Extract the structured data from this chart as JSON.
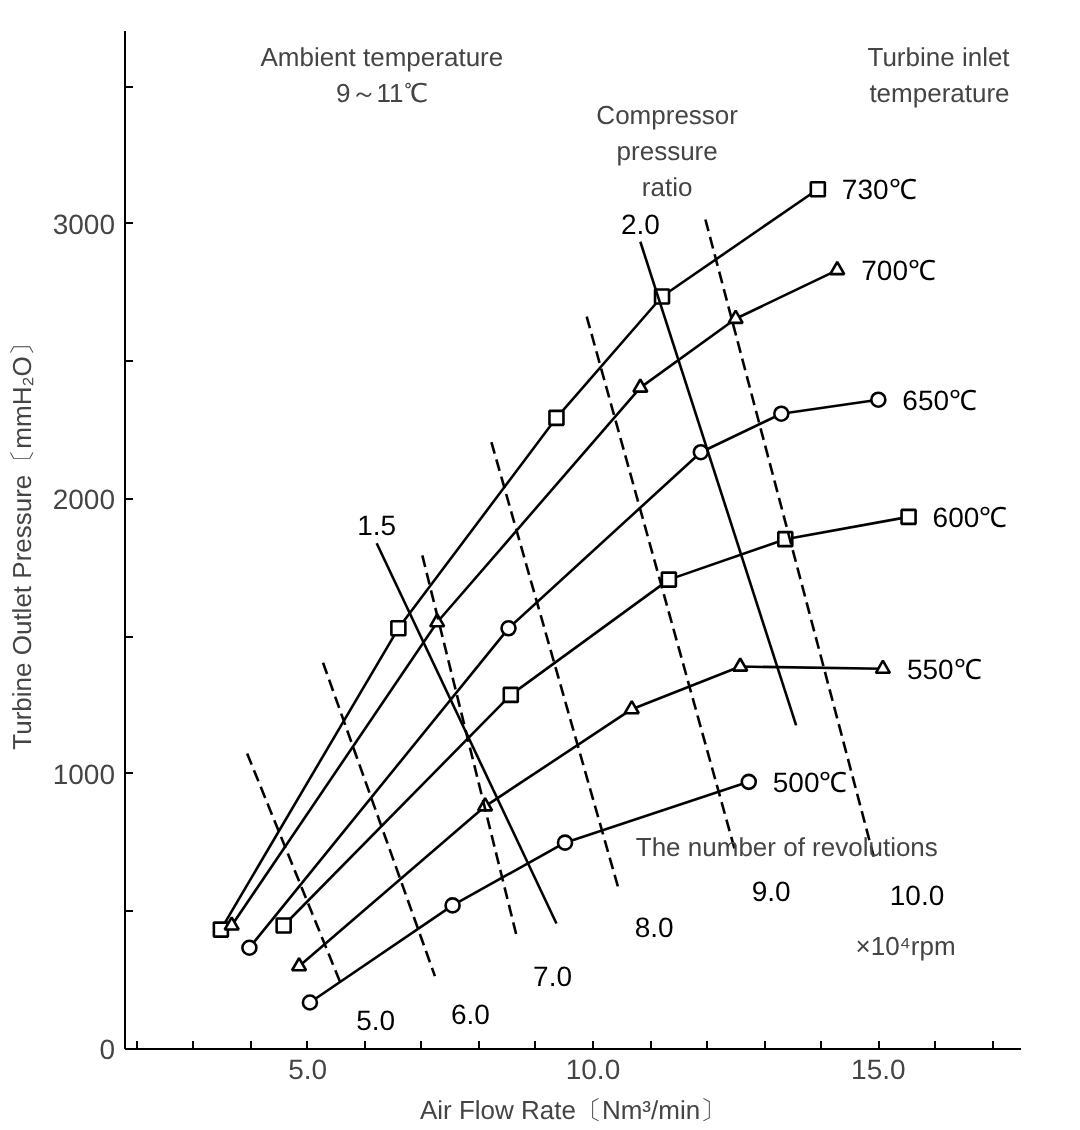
{
  "chart_data": {
    "type": "line",
    "xlabel": "Air Flow Rate〔Nm³/min〕",
    "ylabel": "Turbine Outlet Pressure〔mmH₂O〕",
    "xlim": [
      1.8,
      17.5
    ],
    "ylim": [
      0,
      3700
    ],
    "xticks": [
      {
        "value": 2,
        "label": null
      },
      {
        "value": 3,
        "label": null
      },
      {
        "value": 4,
        "label": null
      },
      {
        "value": 5,
        "label": "5.0"
      },
      {
        "value": 6,
        "label": null
      },
      {
        "value": 7,
        "label": null
      },
      {
        "value": 8,
        "label": null
      },
      {
        "value": 9,
        "label": null
      },
      {
        "value": 10,
        "label": "10.0"
      },
      {
        "value": 11,
        "label": null
      },
      {
        "value": 12,
        "label": null
      },
      {
        "value": 13,
        "label": null
      },
      {
        "value": 14,
        "label": null
      },
      {
        "value": 15,
        "label": "15.0"
      },
      {
        "value": 16,
        "label": null
      },
      {
        "value": 17,
        "label": null
      }
    ],
    "yticks": [
      0,
      {
        "value": 500,
        "label": null
      },
      1000,
      {
        "value": 1500,
        "label": null
      },
      2000,
      {
        "value": 2500,
        "label": null
      },
      3000,
      {
        "value": 3500,
        "label": null
      }
    ],
    "grid": false,
    "annotations": [
      "Ambient temperature\n9～11℃",
      "Turbine inlet\ntemperature",
      "Compressor\npressure\nratio",
      "The number of revolutions",
      "×10⁴rpm"
    ],
    "series": [
      {
        "name": "730℃",
        "color": "#000000",
        "marker": "square",
        "line_style": "solid",
        "x": [
          3.48,
          6.59,
          9.36,
          11.21,
          13.94
        ],
        "values": [
          434,
          1529,
          2294,
          2735,
          3125
        ]
      },
      {
        "name": "700℃",
        "color": "#000000",
        "marker": "triangle",
        "line_style": "solid",
        "x": [
          3.67,
          7.27,
          10.83,
          12.5,
          14.28
        ],
        "values": [
          449,
          1551,
          2404,
          2654,
          2831
        ]
      },
      {
        "name": "650℃",
        "color": "#000000",
        "marker": "circle",
        "line_style": "solid",
        "x": [
          3.98,
          8.52,
          11.89,
          13.3,
          15.0
        ],
        "values": [
          368,
          1529,
          2169,
          2309,
          2360
        ]
      },
      {
        "name": "600℃",
        "color": "#000000",
        "marker": "square",
        "line_style": "solid",
        "x": [
          4.58,
          8.56,
          11.33,
          13.37,
          15.53
        ],
        "values": [
          449,
          1287,
          1706,
          1853,
          1934
        ]
      },
      {
        "name": "550℃",
        "color": "#000000",
        "marker": "triangle",
        "line_style": "solid",
        "x": [
          4.85,
          8.11,
          10.68,
          12.58,
          15.08
        ],
        "values": [
          301,
          882,
          1235,
          1390,
          1382
        ]
      },
      {
        "name": "500℃",
        "color": "#000000",
        "marker": "circle",
        "line_style": "solid",
        "x": [
          5.04,
          7.54,
          9.51,
          12.73
        ],
        "values": [
          169,
          522,
          750,
          971
        ]
      },
      {
        "name": "5.0",
        "color": "#000000",
        "marker": "none",
        "line_style": "dashed",
        "x": [
          3.94,
          5.57
        ],
        "values": [
          1074,
          243
        ]
      },
      {
        "name": "6.0",
        "color": "#000000",
        "marker": "none",
        "line_style": "dashed",
        "x": [
          5.27,
          7.23
        ],
        "values": [
          1404,
          265
        ]
      },
      {
        "name": "7.0",
        "color": "#000000",
        "marker": "none",
        "line_style": "dashed",
        "x": [
          7.01,
          8.67
        ],
        "values": [
          1794,
          404
        ]
      },
      {
        "name": "8.0",
        "color": "#000000",
        "marker": "none",
        "line_style": "dashed",
        "x": [
          8.22,
          10.45
        ],
        "values": [
          2206,
          581
        ]
      },
      {
        "name": "9.0",
        "color": "#000000",
        "marker": "none",
        "line_style": "dashed",
        "x": [
          9.89,
          12.5
        ],
        "values": [
          2662,
          713
        ]
      },
      {
        "name": "10.0",
        "color": "#000000",
        "marker": "none",
        "line_style": "dashed",
        "x": [
          11.97,
          14.92
        ],
        "values": [
          3015,
          699
        ]
      },
      {
        "name": "1.5",
        "color": "#000000",
        "marker": "none",
        "line_style": "solid",
        "x": [
          6.21,
          9.36
        ],
        "values": [
          1838,
          456
        ]
      },
      {
        "name": "2.0",
        "color": "#000000",
        "marker": "none",
        "line_style": "solid",
        "x": [
          10.83,
          13.56
        ],
        "values": [
          2934,
          1176
        ]
      }
    ]
  }
}
